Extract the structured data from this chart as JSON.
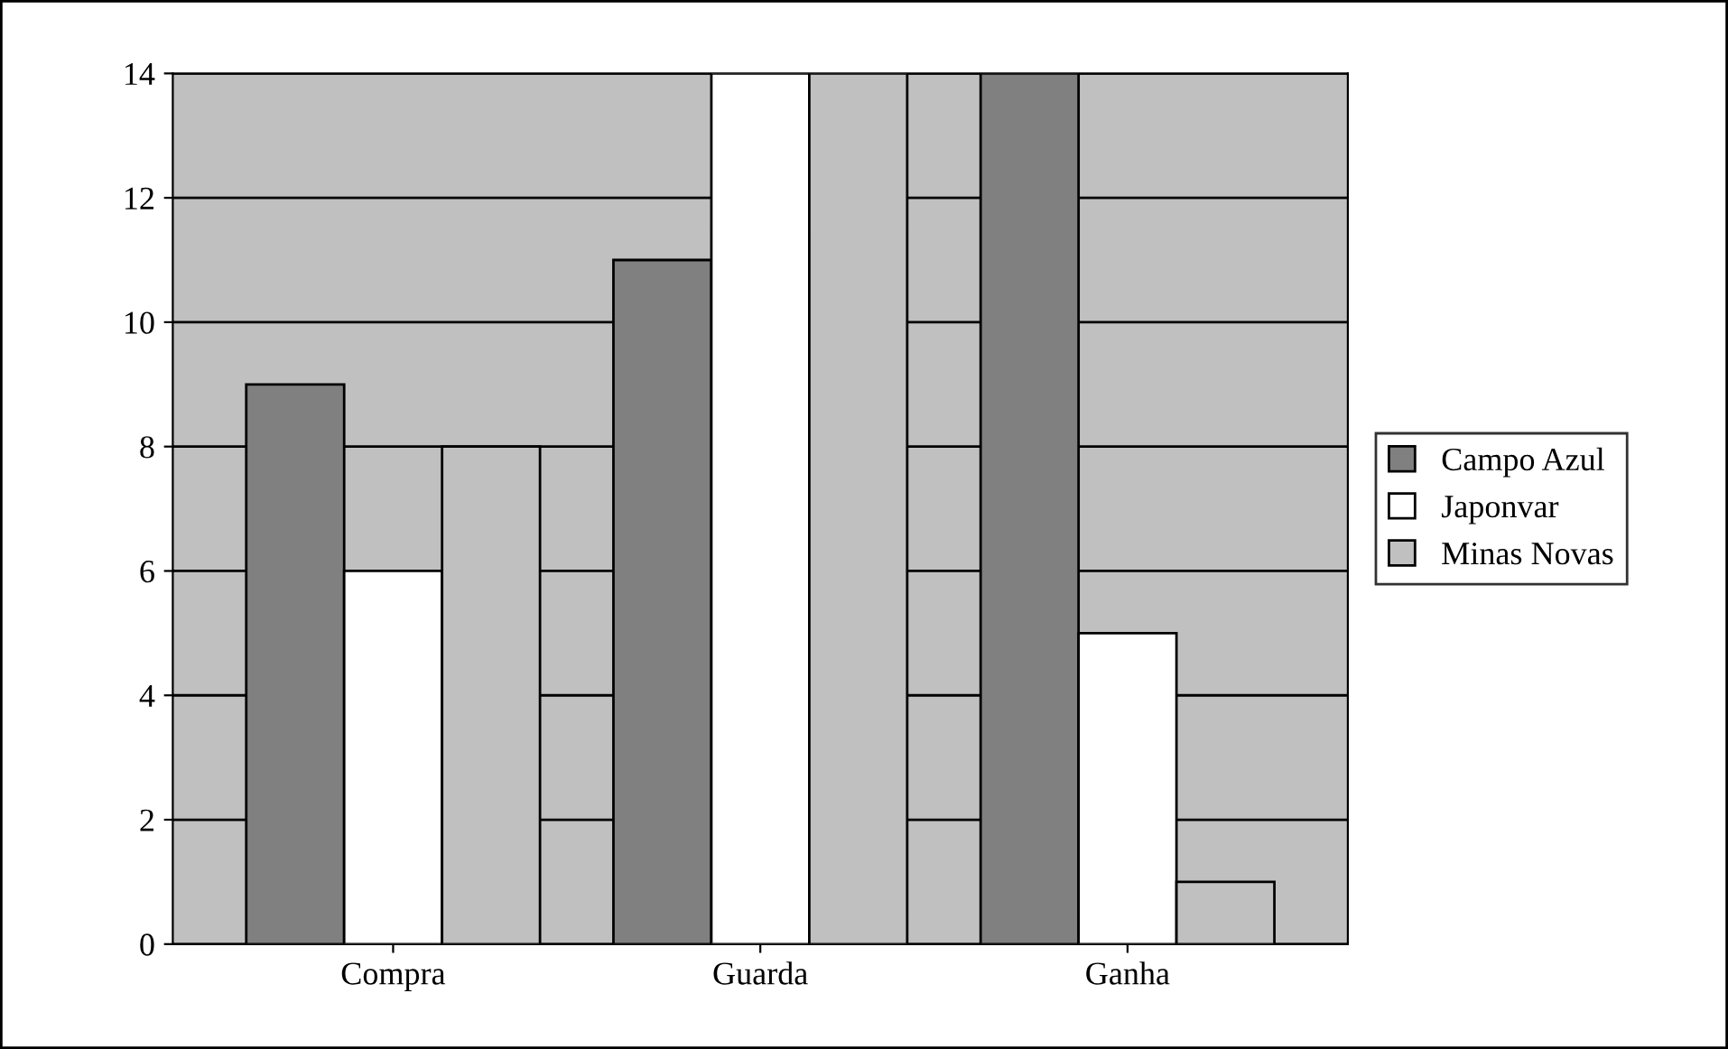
{
  "chart_data": {
    "type": "bar",
    "categories": [
      "Compra",
      "Guarda",
      "Ganha"
    ],
    "series": [
      {
        "name": "Campo Azul",
        "color": "#808080",
        "values": [
          9,
          11,
          14
        ]
      },
      {
        "name": "Japonvar",
        "color": "#ffffff",
        "values": [
          6,
          14,
          5
        ]
      },
      {
        "name": "Minas Novas",
        "color": "#c0c0c0",
        "values": [
          8,
          14,
          1
        ]
      }
    ],
    "ylim": [
      0,
      14
    ],
    "yticks": [
      0,
      2,
      4,
      6,
      8,
      10,
      12,
      14
    ],
    "grid": "y",
    "legend": "right"
  }
}
